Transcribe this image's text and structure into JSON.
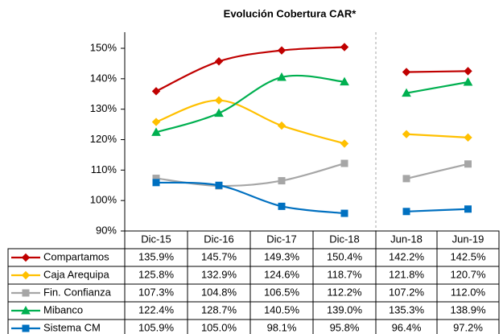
{
  "chart_data": {
    "type": "line",
    "title": "Evolución  Cobertura CAR*",
    "categories": [
      "Dic-15",
      "Dic-16",
      "Dic-17",
      "Dic-18",
      "Jun-18",
      "Jun-19"
    ],
    "ylim": [
      90,
      150
    ],
    "yticks": [
      {
        "value": 90,
        "label": "90%"
      },
      {
        "value": 100,
        "label": "100%"
      },
      {
        "value": 110,
        "label": "110%"
      },
      {
        "value": 120,
        "label": "120%"
      },
      {
        "value": 130,
        "label": "130%"
      },
      {
        "value": 140,
        "label": "140%"
      },
      {
        "value": 150,
        "label": "150%"
      }
    ],
    "grid": false,
    "series": [
      {
        "name": "Compartamos",
        "color": "#c00000",
        "marker": "diamond",
        "values": [
          135.9,
          145.7,
          149.3,
          150.4,
          142.2,
          142.5
        ],
        "value_labels": [
          "135.9%",
          "145.7%",
          "149.3%",
          "150.4%",
          "142.2%",
          "142.5%"
        ]
      },
      {
        "name": "Caja Arequipa",
        "color": "#ffc000",
        "marker": "diamond",
        "values": [
          125.8,
          132.9,
          124.6,
          118.7,
          121.8,
          120.7
        ],
        "value_labels": [
          "125.8%",
          "132.9%",
          "124.6%",
          "118.7%",
          "121.8%",
          "120.7%"
        ]
      },
      {
        "name": "Fin. Confianza",
        "color": "#a6a6a6",
        "marker": "square",
        "values": [
          107.3,
          104.8,
          106.5,
          112.2,
          107.2,
          112.0
        ],
        "value_labels": [
          "107.3%",
          "104.8%",
          "106.5%",
          "112.2%",
          "107.2%",
          "112.0%"
        ]
      },
      {
        "name": "Mibanco",
        "color": "#00b050",
        "marker": "triangle",
        "values": [
          122.4,
          128.7,
          140.5,
          139.0,
          135.3,
          138.9
        ],
        "value_labels": [
          "122.4%",
          "128.7%",
          "140.5%",
          "139.0%",
          "135.3%",
          "138.9%"
        ]
      },
      {
        "name": "Sistema CM",
        "color": "#0070c0",
        "marker": "square",
        "values": [
          105.9,
          105.0,
          98.1,
          95.8,
          96.4,
          97.2
        ],
        "value_labels": [
          "105.9%",
          "105.0%",
          "98.1%",
          "95.8%",
          "96.4%",
          "97.2%"
        ]
      }
    ]
  }
}
